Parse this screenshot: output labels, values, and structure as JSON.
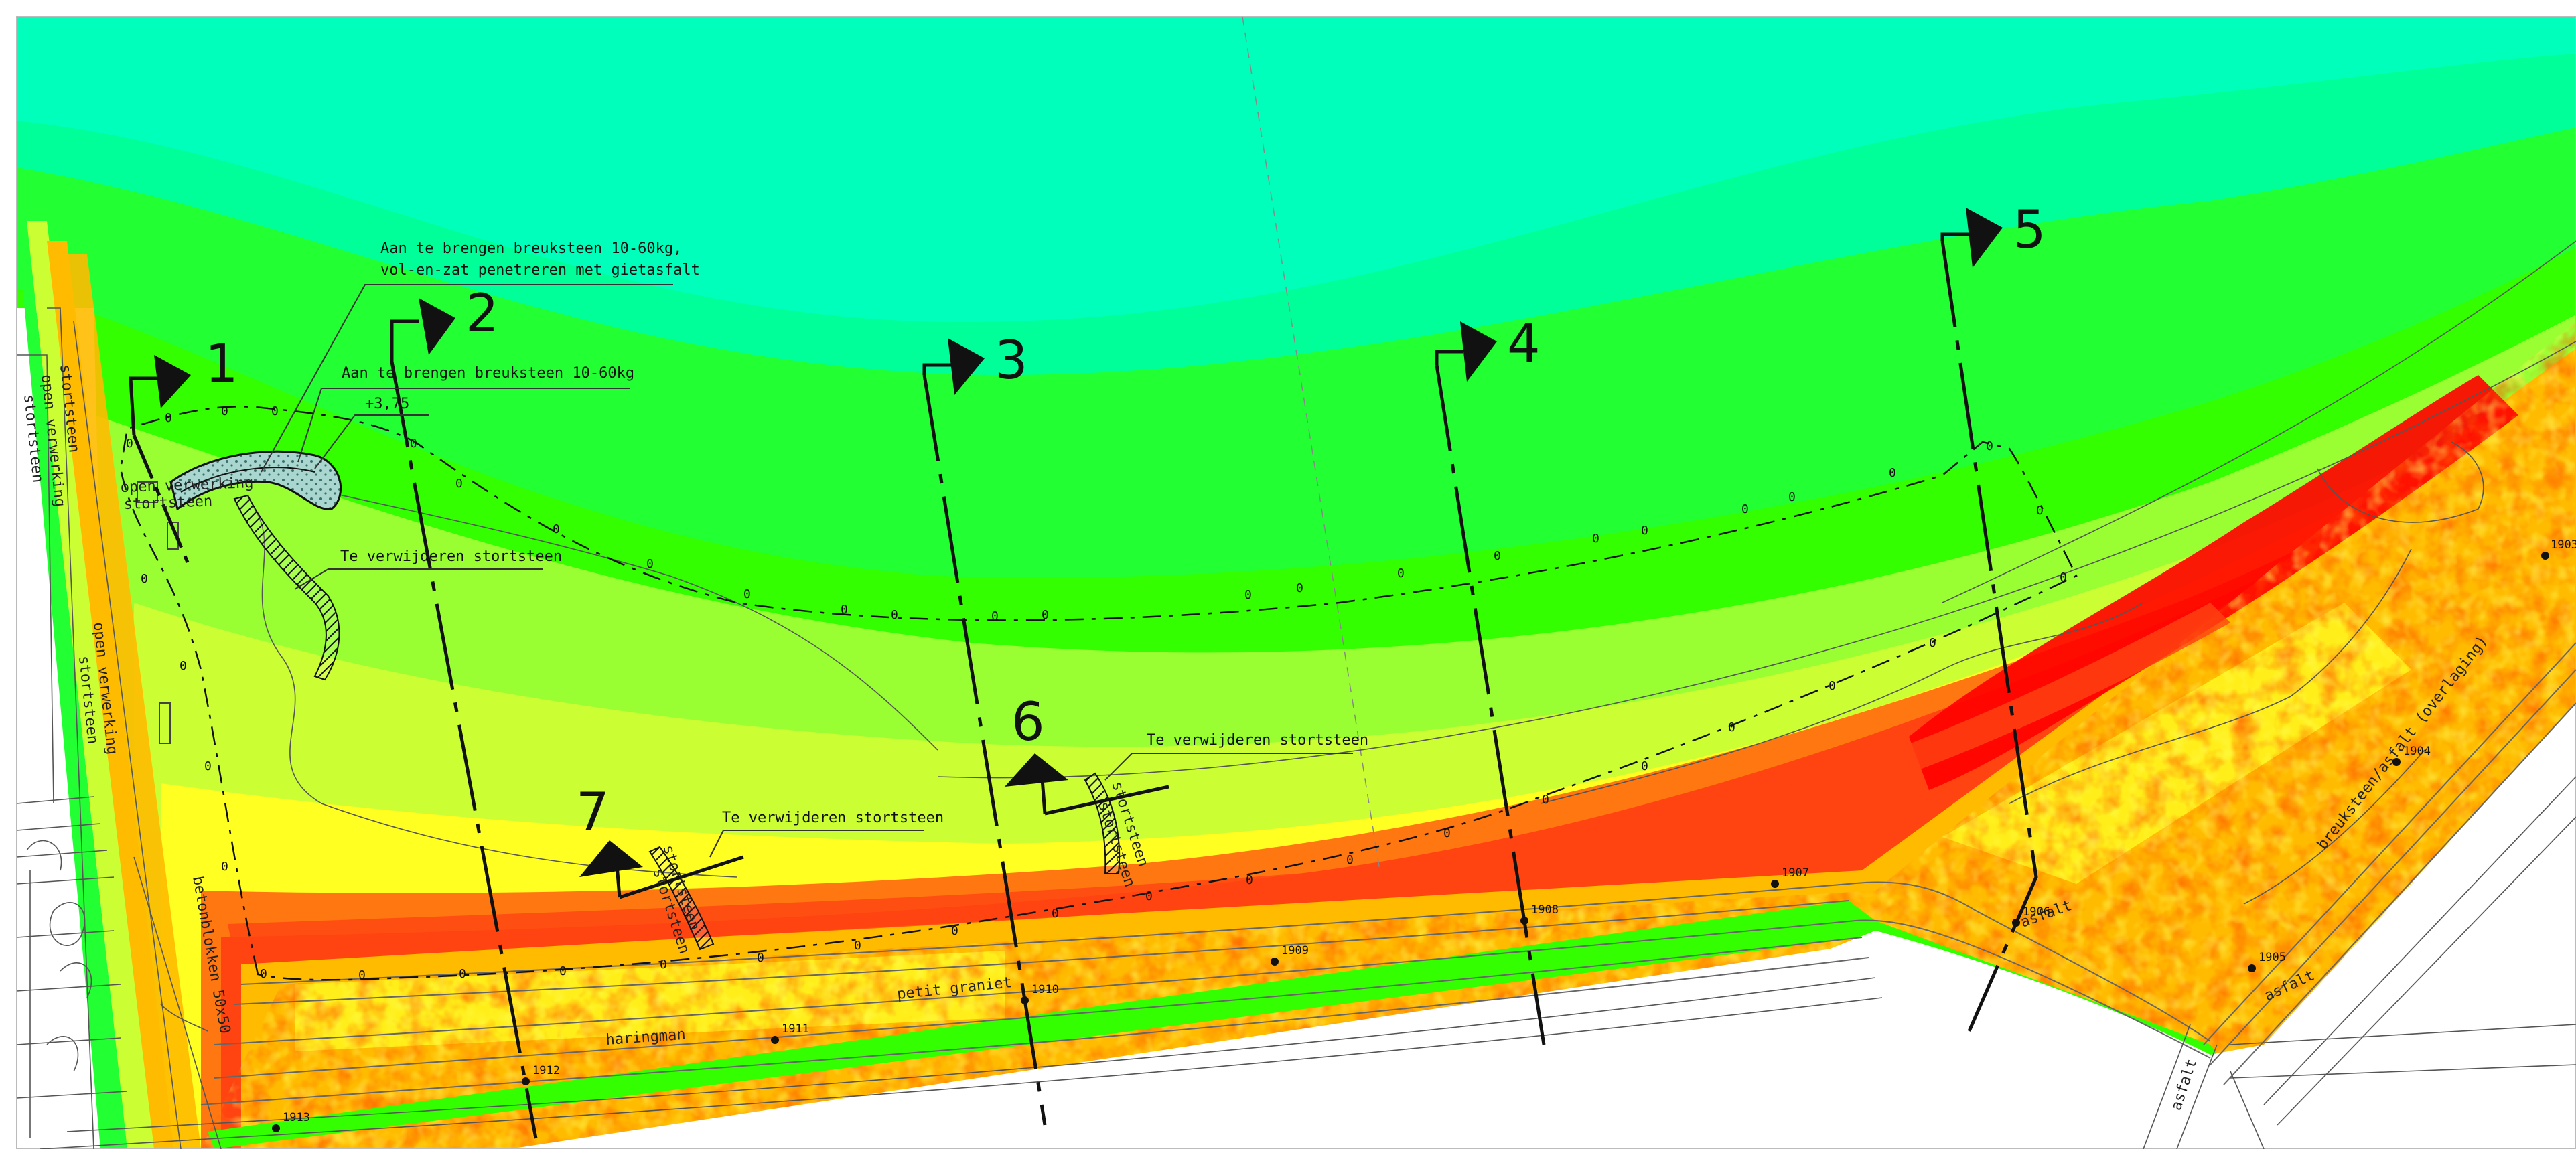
{
  "colors": {
    "deep": "#00ffbb",
    "sea2": "#00ff99",
    "green": "#22ff33",
    "green2": "#33ff00",
    "lime": "#99ff33",
    "lime2": "#ccff33",
    "yellow": "#ffff22",
    "orange": "#ffbb00",
    "orange2": "#ff7711",
    "redorange": "#ff4411",
    "red": "#ff0000",
    "white": "#ffffff"
  },
  "annotations": {
    "breuksteen_gietasfalt_line1": "Aan te brengen breuksteen 10-60kg,",
    "breuksteen_gietasfalt_line2": "vol-en-zat penetreren met gietasfalt",
    "breuksteen_10_60": "Aan te brengen breuksteen 10-60kg",
    "level": "+3,75",
    "verwijderen_1": "Te verwijderen stortsteen",
    "verwijderen_2": "Te verwijderen stortsteen",
    "verwijderen_3": "Te verwijderen stortsteen"
  },
  "sections": [
    {
      "id": "1"
    },
    {
      "id": "2"
    },
    {
      "id": "3"
    },
    {
      "id": "4"
    },
    {
      "id": "5"
    },
    {
      "id": "6"
    },
    {
      "id": "7"
    }
  ],
  "zero_label": "0",
  "points": [
    "1913",
    "1912",
    "1911",
    "1910",
    "1909",
    "1908",
    "1907",
    "1906",
    "1905",
    "1904",
    "1903"
  ],
  "surface_labels": {
    "stortsteen_a": "stortsteen",
    "open_verwerking_a": "open verwerking",
    "stortsteen_b": "stortsteen",
    "open_verwerking_b": "open verwerking",
    "stortsteen_c": "stortsteen",
    "open_verwerking_c": "open verwerking",
    "stortsteen_d": "stortsteen",
    "betonblokken": "betonblokken 50x50",
    "haringman": "haringman",
    "petit_graniet": "petit graniet",
    "asfalt_a": "asfalt",
    "asfalt_b": "asfalt",
    "asfalt_c": "asfalt",
    "breuksteen_asfalt": "breuksteen/asfalt (overlaging)",
    "stortsteen_e": "stortsteen",
    "stortsteen_f": "stortsteen",
    "stortsteen_g": "stortsteen",
    "stortsteen_h": "stortsteen"
  }
}
